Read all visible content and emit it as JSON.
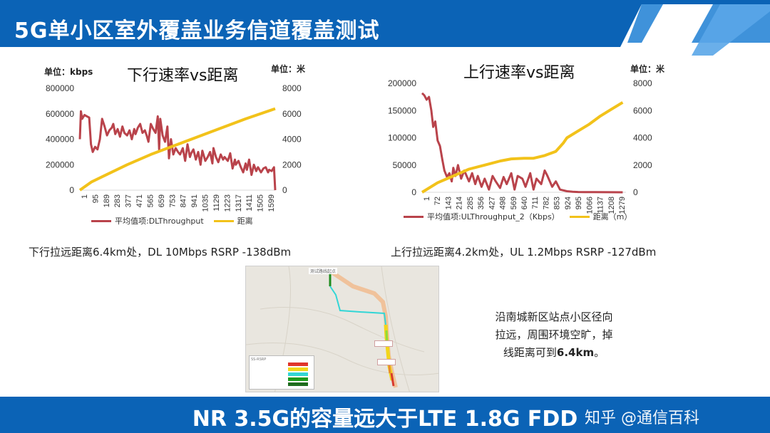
{
  "slide_title": "5G单小区室外覆盖业务信道覆盖测试",
  "colors": {
    "header_blue": "#0b63b6",
    "throughput_red": "#b9434b",
    "distance_yellow": "#f2c21a",
    "axis_gray": "#d9d9d9"
  },
  "chart_data": [
    {
      "type": "line",
      "title": "下行速率vs距离",
      "left_unit": "单位：kbps",
      "right_unit": "单位：米",
      "x_tick_labels": [
        "1",
        "95",
        "189",
        "283",
        "377",
        "471",
        "565",
        "659",
        "753",
        "847",
        "941",
        "1035",
        "1129",
        "1223",
        "1317",
        "1411",
        "1505",
        "1599"
      ],
      "y_left_ticks": [
        "0",
        "200000",
        "400000",
        "600000",
        "800000"
      ],
      "y_right_ticks": [
        "0",
        "2000",
        "4000",
        "6000",
        "8000"
      ],
      "y_left_range": [
        0,
        800000
      ],
      "y_right_range": [
        0,
        8000
      ],
      "x_range": [
        1,
        1650
      ],
      "grid": false,
      "legend_position": "bottom",
      "series": [
        {
          "name": "平均值项:DLThroughput",
          "axis": "left",
          "color": "#b9434b",
          "x": [
            1,
            10,
            20,
            40,
            60,
            80,
            95,
            110,
            130,
            150,
            170,
            189,
            210,
            230,
            250,
            270,
            283,
            300,
            320,
            340,
            360,
            377,
            400,
            420,
            440,
            460,
            471,
            490,
            510,
            530,
            550,
            565,
            580,
            600,
            620,
            640,
            659,
            670,
            680,
            700,
            720,
            740,
            753,
            770,
            790,
            810,
            830,
            847,
            870,
            890,
            910,
            930,
            941,
            960,
            980,
            1000,
            1020,
            1035,
            1060,
            1080,
            1100,
            1120,
            1129,
            1150,
            1170,
            1190,
            1210,
            1223,
            1250,
            1270,
            1290,
            1310,
            1317,
            1340,
            1360,
            1380,
            1400,
            1411,
            1430,
            1450,
            1470,
            1490,
            1505,
            1530,
            1550,
            1570,
            1590,
            1599,
            1620,
            1640,
            1650
          ],
          "y": [
            400000,
            620000,
            560000,
            590000,
            580000,
            570000,
            360000,
            300000,
            340000,
            320000,
            400000,
            560000,
            500000,
            430000,
            470000,
            490000,
            520000,
            440000,
            480000,
            420000,
            500000,
            450000,
            430000,
            470000,
            400000,
            480000,
            440000,
            490000,
            520000,
            450000,
            470000,
            430000,
            380000,
            520000,
            480000,
            450000,
            580000,
            320000,
            560000,
            430000,
            380000,
            500000,
            250000,
            400000,
            280000,
            330000,
            300000,
            280000,
            330000,
            230000,
            360000,
            260000,
            290000,
            320000,
            240000,
            300000,
            200000,
            310000,
            230000,
            260000,
            300000,
            210000,
            330000,
            260000,
            220000,
            280000,
            240000,
            260000,
            230000,
            290000,
            170000,
            240000,
            200000,
            230000,
            180000,
            140000,
            210000,
            160000,
            240000,
            120000,
            200000,
            150000,
            180000,
            140000,
            170000,
            180000,
            140000,
            160000,
            150000,
            180000,
            0
          ]
        },
        {
          "name": "距离",
          "axis": "right",
          "color": "#f2c21a",
          "x": [
            1,
            100,
            200,
            400,
            600,
            800,
            1000,
            1200,
            1400,
            1650
          ],
          "y": [
            0,
            650,
            1100,
            2000,
            2800,
            3500,
            4200,
            4900,
            5600,
            6400
          ]
        }
      ]
    },
    {
      "type": "line",
      "title": "上行速率vs距离",
      "left_unit": "",
      "right_unit": "单位：米",
      "x_tick_labels": [
        "1",
        "72",
        "143",
        "214",
        "285",
        "356",
        "427",
        "498",
        "569",
        "640",
        "711",
        "782",
        "853",
        "924",
        "995",
        "1066",
        "1137",
        "1208",
        "1279"
      ],
      "y_left_ticks": [
        "0",
        "50000",
        "100000",
        "150000",
        "200000"
      ],
      "y_right_ticks": [
        "0",
        "2000",
        "4000",
        "6000",
        "8000"
      ],
      "y_left_range": [
        0,
        200000
      ],
      "y_right_range": [
        0,
        8000
      ],
      "x_range": [
        1,
        1300
      ],
      "grid": false,
      "legend_position": "bottom",
      "series": [
        {
          "name": "平均值项:ULThroughput_2（Kbps）",
          "axis": "left",
          "color": "#b9434b",
          "x": [
            1,
            15,
            30,
            45,
            60,
            72,
            85,
            100,
            115,
            130,
            143,
            160,
            175,
            190,
            200,
            214,
            230,
            250,
            270,
            285,
            300,
            320,
            340,
            356,
            380,
            400,
            427,
            450,
            470,
            498,
            520,
            540,
            569,
            590,
            610,
            640,
            660,
            690,
            711,
            730,
            760,
            782,
            800,
            830,
            853,
            880,
            924,
            960,
            995,
            1040,
            1100,
            1200,
            1279
          ],
          "y": [
            182000,
            178000,
            170000,
            175000,
            150000,
            120000,
            130000,
            95000,
            85000,
            60000,
            40000,
            28000,
            35000,
            20000,
            45000,
            30000,
            50000,
            25000,
            40000,
            30000,
            20000,
            35000,
            15000,
            30000,
            10000,
            25000,
            5000,
            30000,
            20000,
            8000,
            28000,
            15000,
            35000,
            5000,
            30000,
            25000,
            10000,
            35000,
            5000,
            25000,
            15000,
            40000,
            30000,
            10000,
            20000,
            5000,
            2000,
            1000,
            500,
            300,
            200,
            100,
            0
          ]
        },
        {
          "name": "距离（m）",
          "axis": "right",
          "color": "#f2c21a",
          "x": [
            1,
            100,
            200,
            300,
            400,
            500,
            569,
            650,
            711,
            782,
            853,
            900,
            924,
            995,
            1066,
            1137,
            1208,
            1279
          ],
          "y": [
            0,
            700,
            1200,
            1700,
            2000,
            2300,
            2450,
            2500,
            2500,
            2700,
            3000,
            3600,
            4000,
            4500,
            5000,
            5600,
            6100,
            6600
          ]
        }
      ]
    }
  ],
  "captions": {
    "left": "下行拉远距离6.4km处，DL 10Mbps RSRP -138dBm",
    "right": "上行拉远距离4.2km处，UL 1.2Mbps RSRP -127dBm"
  },
  "map": {
    "top_label": "测试路线起点",
    "legend_title": "SS-RSRP"
  },
  "note": {
    "line1": "沿南城新区站点小区径向",
    "line2": "拉远，周围环境空旷，掉",
    "line3_prefix": "线距离可到",
    "line3_value": "6.4km",
    "line3_suffix": "。"
  },
  "footer_text": "NR 3.5G的容量远大于LTE 1.8G FDD",
  "watermark": "知乎 @通信百科"
}
